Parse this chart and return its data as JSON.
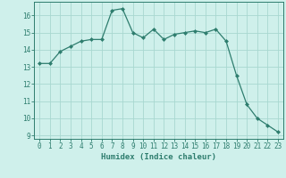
{
  "x": [
    0,
    1,
    2,
    3,
    4,
    5,
    6,
    7,
    8,
    9,
    10,
    11,
    12,
    13,
    14,
    15,
    16,
    17,
    18,
    19,
    20,
    21,
    22,
    23
  ],
  "y": [
    13.2,
    13.2,
    13.9,
    14.2,
    14.5,
    14.6,
    14.6,
    16.3,
    16.4,
    15.0,
    14.7,
    15.2,
    14.6,
    14.9,
    15.0,
    15.1,
    15.0,
    15.2,
    14.5,
    12.5,
    10.8,
    10.0,
    9.6,
    9.2
  ],
  "line_color": "#2e7d6e",
  "marker": "D",
  "marker_size": 2.0,
  "bg_color": "#cff0eb",
  "grid_color": "#a8d8d0",
  "xlabel": "Humidex (Indice chaleur)",
  "xlim": [
    -0.5,
    23.5
  ],
  "ylim": [
    8.8,
    16.8
  ],
  "yticks": [
    9,
    10,
    11,
    12,
    13,
    14,
    15,
    16
  ],
  "xticks": [
    0,
    1,
    2,
    3,
    4,
    5,
    6,
    7,
    8,
    9,
    10,
    11,
    12,
    13,
    14,
    15,
    16,
    17,
    18,
    19,
    20,
    21,
    22,
    23
  ],
  "tick_fontsize": 5.5,
  "xlabel_fontsize": 6.5
}
